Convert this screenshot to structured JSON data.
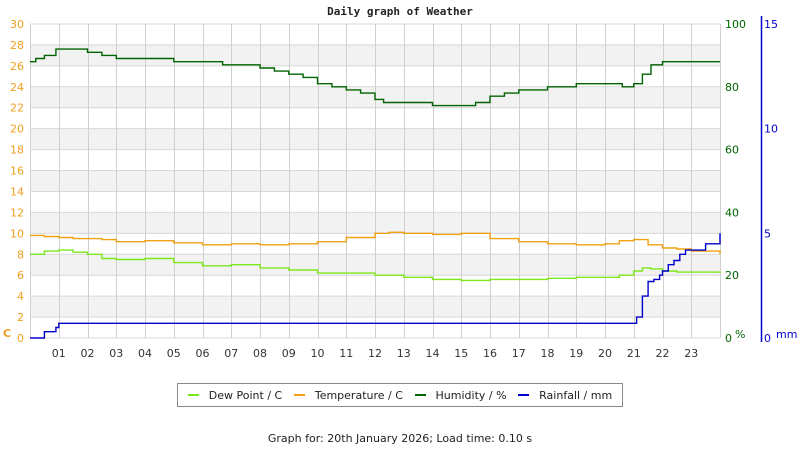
{
  "title": "Daily graph of Weather",
  "footer": "Graph for: 20th January 2026; Load time: 0.10 s",
  "colors": {
    "dew_point": "#7ce81a",
    "temperature": "#f0a010",
    "humidity": "#006400",
    "rainfall": "#0000cc",
    "left_axis": "#f0a020",
    "humidity_axis": "#006400",
    "rain_axis": "#0000cc"
  },
  "legend": [
    {
      "label": "Dew Point / C",
      "color": "#7ce81a"
    },
    {
      "label": "Temperature / C",
      "color": "#f0a010"
    },
    {
      "label": "Humidity / %",
      "color": "#006400"
    },
    {
      "label": "Rainfall / mm",
      "color": "#0000cc"
    }
  ],
  "axes": {
    "left_unit": "C",
    "humidity_unit": "%",
    "rain_unit": "mm"
  },
  "chart_data": {
    "type": "line",
    "title": "Daily graph of Weather",
    "xlabel": "Hour",
    "x_ticks": [
      "01",
      "02",
      "03",
      "04",
      "05",
      "06",
      "07",
      "08",
      "09",
      "10",
      "11",
      "12",
      "13",
      "14",
      "15",
      "16",
      "17",
      "18",
      "19",
      "20",
      "21",
      "22",
      "23"
    ],
    "xlim": [
      0,
      24
    ],
    "y_left": {
      "label": "C",
      "ticks": [
        0,
        2,
        4,
        6,
        8,
        10,
        12,
        14,
        16,
        18,
        20,
        22,
        24,
        26,
        28,
        30
      ],
      "ylim": [
        0,
        30
      ]
    },
    "y_right_humidity": {
      "label": "%",
      "ticks": [
        0,
        20,
        40,
        60,
        80,
        100
      ],
      "ylim": [
        0,
        100
      ]
    },
    "y_right_rain": {
      "label": "mm",
      "ticks": [
        0,
        5,
        10,
        15
      ],
      "ylim": [
        0,
        15
      ]
    },
    "grid": true,
    "legend_position": "bottom",
    "series": [
      {
        "name": "Dew Point / C",
        "axis": "left",
        "x": [
          0,
          0.5,
          1,
          1.5,
          2,
          2.5,
          3,
          4,
          5,
          6,
          7,
          8,
          9,
          10,
          11,
          12,
          13,
          14,
          15,
          16,
          17,
          18,
          19,
          20,
          20.5,
          21,
          21.3,
          21.6,
          22,
          22.5,
          23,
          24
        ],
        "values": [
          8.0,
          8.3,
          8.4,
          8.2,
          8.0,
          7.6,
          7.5,
          7.6,
          7.2,
          6.9,
          7.0,
          6.7,
          6.5,
          6.2,
          6.2,
          6.0,
          5.8,
          5.6,
          5.5,
          5.6,
          5.6,
          5.7,
          5.8,
          5.8,
          6.0,
          6.4,
          6.7,
          6.6,
          6.4,
          6.3,
          6.3,
          6.2
        ]
      },
      {
        "name": "Temperature / C",
        "axis": "left",
        "x": [
          0,
          0.5,
          1,
          1.5,
          2,
          2.5,
          3,
          4,
          5,
          6,
          7,
          8,
          9,
          10,
          11,
          12,
          12.5,
          13,
          14,
          15,
          16,
          17,
          18,
          19,
          20,
          20.5,
          21,
          21.5,
          22,
          22.5,
          23,
          24
        ],
        "values": [
          9.8,
          9.7,
          9.6,
          9.5,
          9.5,
          9.4,
          9.2,
          9.3,
          9.1,
          8.9,
          9.0,
          8.9,
          9.0,
          9.2,
          9.6,
          10.0,
          10.1,
          10.0,
          9.9,
          10.0,
          9.5,
          9.2,
          9.0,
          8.9,
          9.0,
          9.3,
          9.4,
          8.9,
          8.6,
          8.5,
          8.3,
          8.0
        ]
      },
      {
        "name": "Humidity / %",
        "axis": "right_humidity",
        "x": [
          0,
          0.2,
          0.5,
          0.9,
          1.5,
          2,
          2.5,
          3,
          3.5,
          4,
          5,
          6,
          6.7,
          7.5,
          8,
          8.5,
          9,
          9.5,
          10,
          10.5,
          11,
          11.5,
          12,
          12.3,
          13,
          14,
          14.5,
          15,
          15.5,
          16,
          16.5,
          17,
          18,
          19,
          20,
          20.6,
          21,
          21.3,
          21.6,
          22,
          23,
          24
        ],
        "values": [
          88,
          89,
          90,
          92,
          92,
          91,
          90,
          89,
          89,
          89,
          88,
          88,
          87,
          87,
          86,
          85,
          84,
          83,
          81,
          80,
          79,
          78,
          76,
          75,
          75,
          74,
          74,
          74,
          75,
          77,
          78,
          79,
          80,
          81,
          81,
          80,
          81,
          84,
          87,
          88,
          88,
          88
        ]
      },
      {
        "name": "Rainfall / mm",
        "axis": "right_rain",
        "x": [
          0,
          0.4,
          0.5,
          0.8,
          0.9,
          1,
          2,
          5,
          10,
          15,
          20,
          21,
          21.1,
          21.3,
          21.5,
          21.7,
          21.9,
          22,
          22.2,
          22.4,
          22.6,
          22.8,
          23,
          23.4,
          23.5,
          23.9,
          24
        ],
        "values": [
          0,
          0,
          0.3,
          0.3,
          0.5,
          0.7,
          0.7,
          0.7,
          0.7,
          0.7,
          0.7,
          0.7,
          1.0,
          2.0,
          2.7,
          2.8,
          3.0,
          3.2,
          3.5,
          3.7,
          4.0,
          4.2,
          4.2,
          4.2,
          4.5,
          4.5,
          5.0
        ]
      }
    ]
  }
}
